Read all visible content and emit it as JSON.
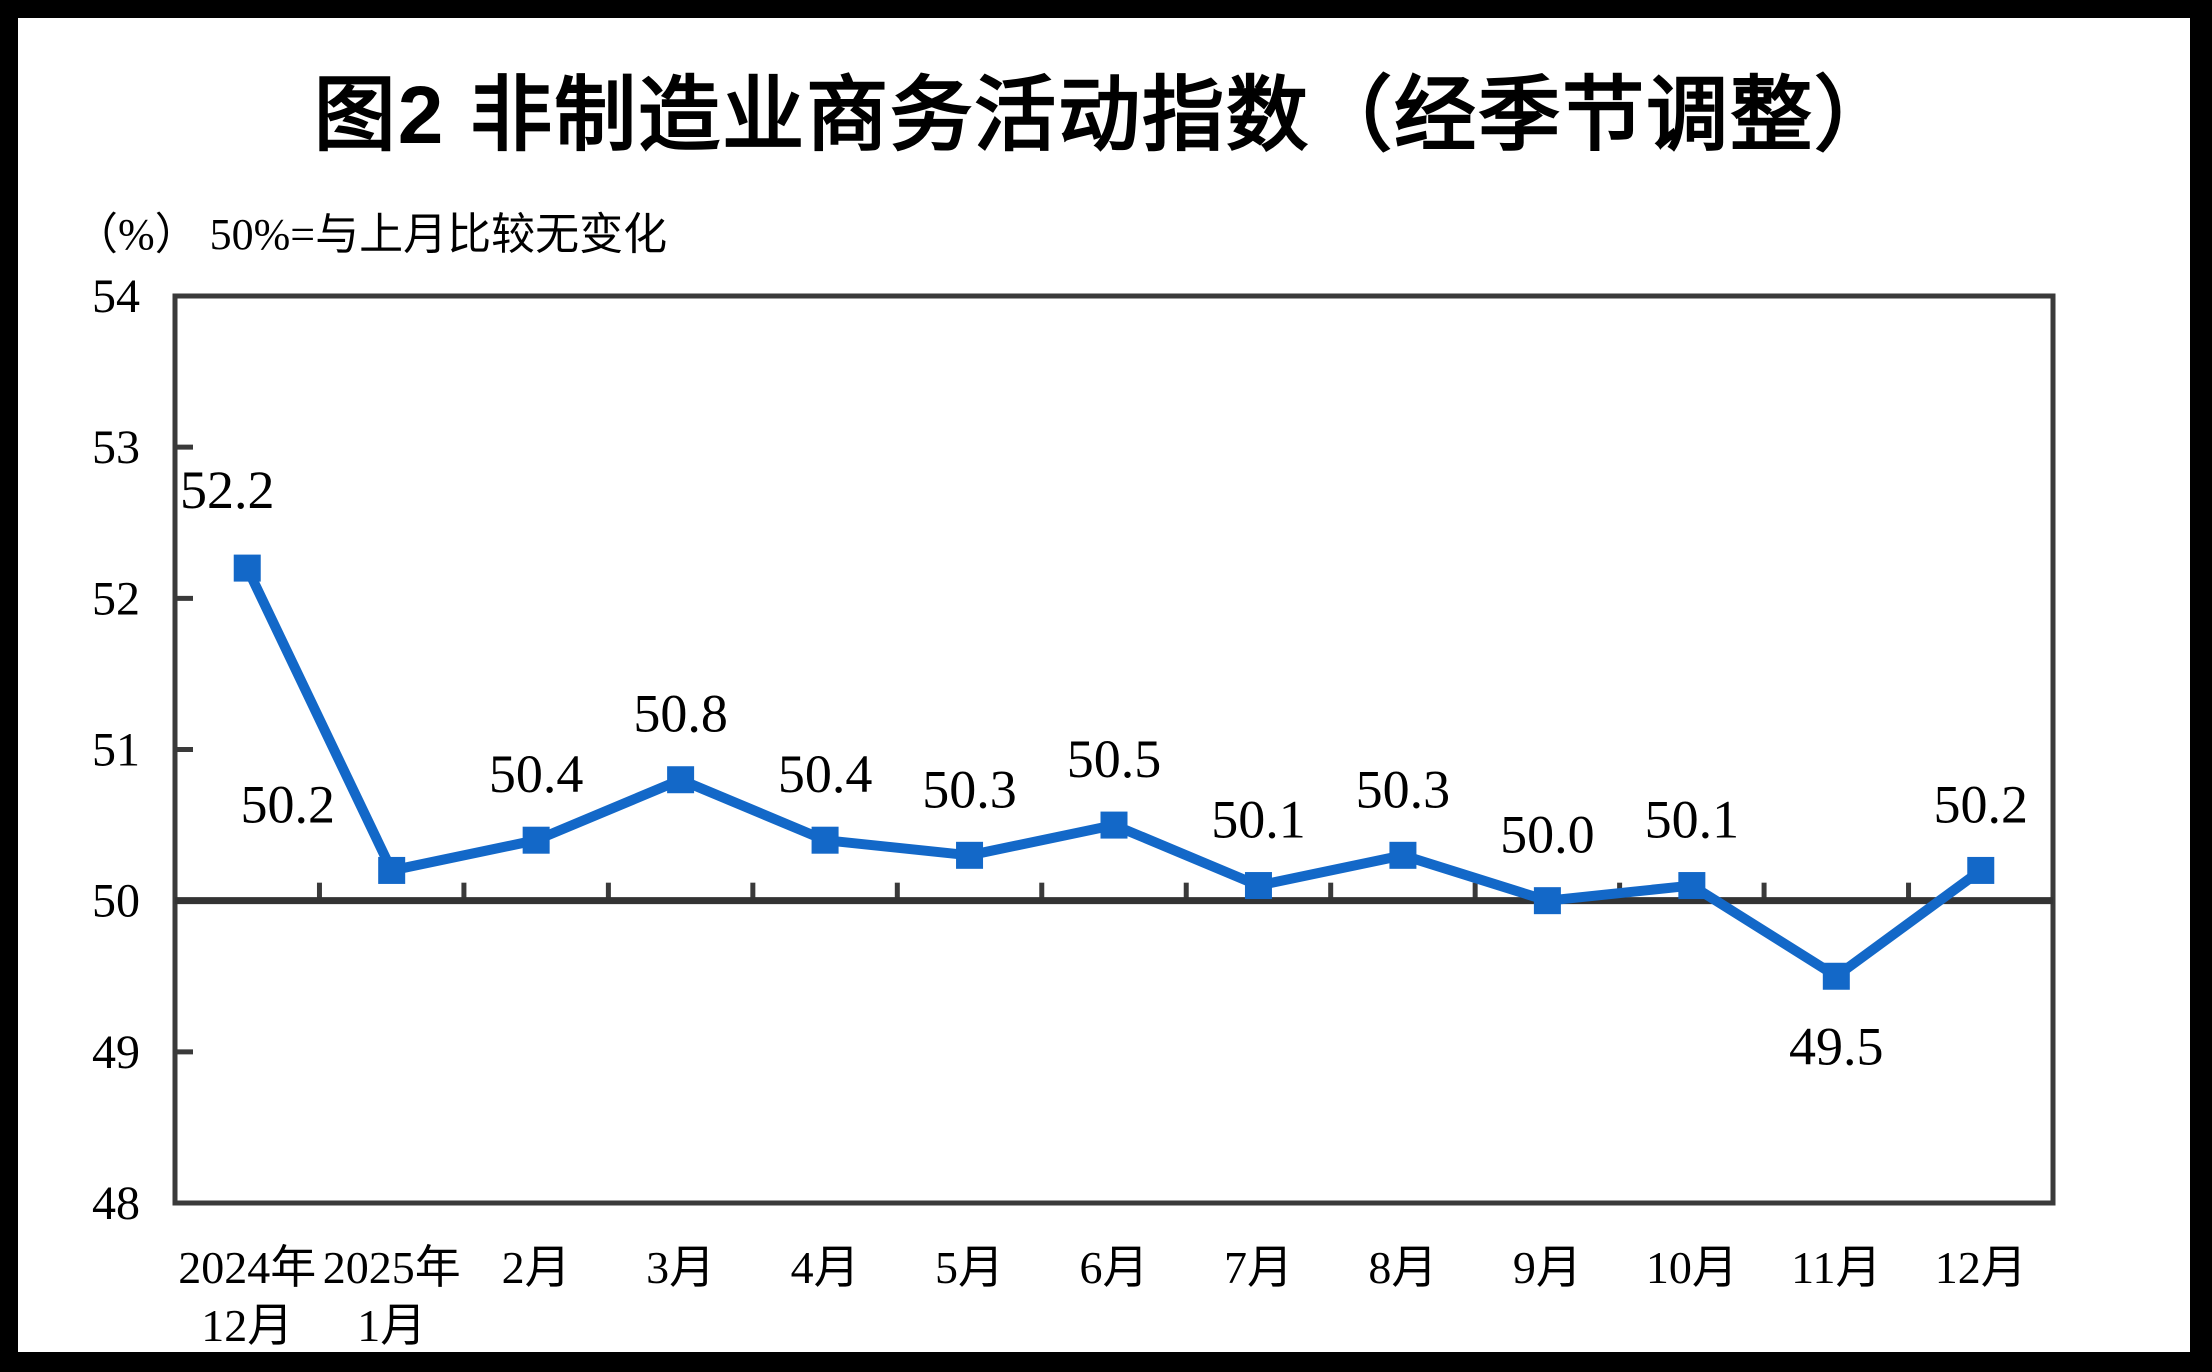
{
  "title": "图2 非制造业商务活动指数（经季节调整）",
  "subtitle": "（%） 50%=与上月比较无变化",
  "colors": {
    "line": "#1368C8",
    "axis": "#3a3a3a",
    "reference_line": "#333333",
    "text": "#000000",
    "background": "#ffffff",
    "outer_border": "#000000"
  },
  "chart_data": {
    "type": "line",
    "title": "图2 非制造业商务活动指数（经季节调整）",
    "unit_note": "（%） 50%=与上月比较无变化",
    "categories": [
      [
        "2024年",
        "12月"
      ],
      [
        "2025年",
        "1月"
      ],
      [
        "2月"
      ],
      [
        "3月"
      ],
      [
        "4月"
      ],
      [
        "5月"
      ],
      [
        "6月"
      ],
      [
        "7月"
      ],
      [
        "8月"
      ],
      [
        "9月"
      ],
      [
        "10月"
      ],
      [
        "11月"
      ],
      [
        "12月"
      ]
    ],
    "series": [
      {
        "name": "非制造业商务活动指数（经季节调整）",
        "values": [
          52.2,
          50.2,
          50.4,
          50.8,
          50.4,
          50.3,
          50.5,
          50.1,
          50.3,
          50.0,
          50.1,
          49.5,
          50.2
        ],
        "data_labels": [
          "52.2",
          "50.2",
          "50.4",
          "50.8",
          "50.4",
          "50.3",
          "50.5",
          "50.1",
          "50.3",
          "50.0",
          "50.1",
          "49.5",
          "50.2"
        ]
      }
    ],
    "ylim": [
      48,
      54
    ],
    "yticks": [
      48,
      49,
      50,
      51,
      52,
      53,
      54
    ],
    "reference_line": {
      "value": 50,
      "meaning": "50%=与上月比较无变化"
    },
    "marker": "square",
    "grid": "off",
    "legend": "none"
  }
}
